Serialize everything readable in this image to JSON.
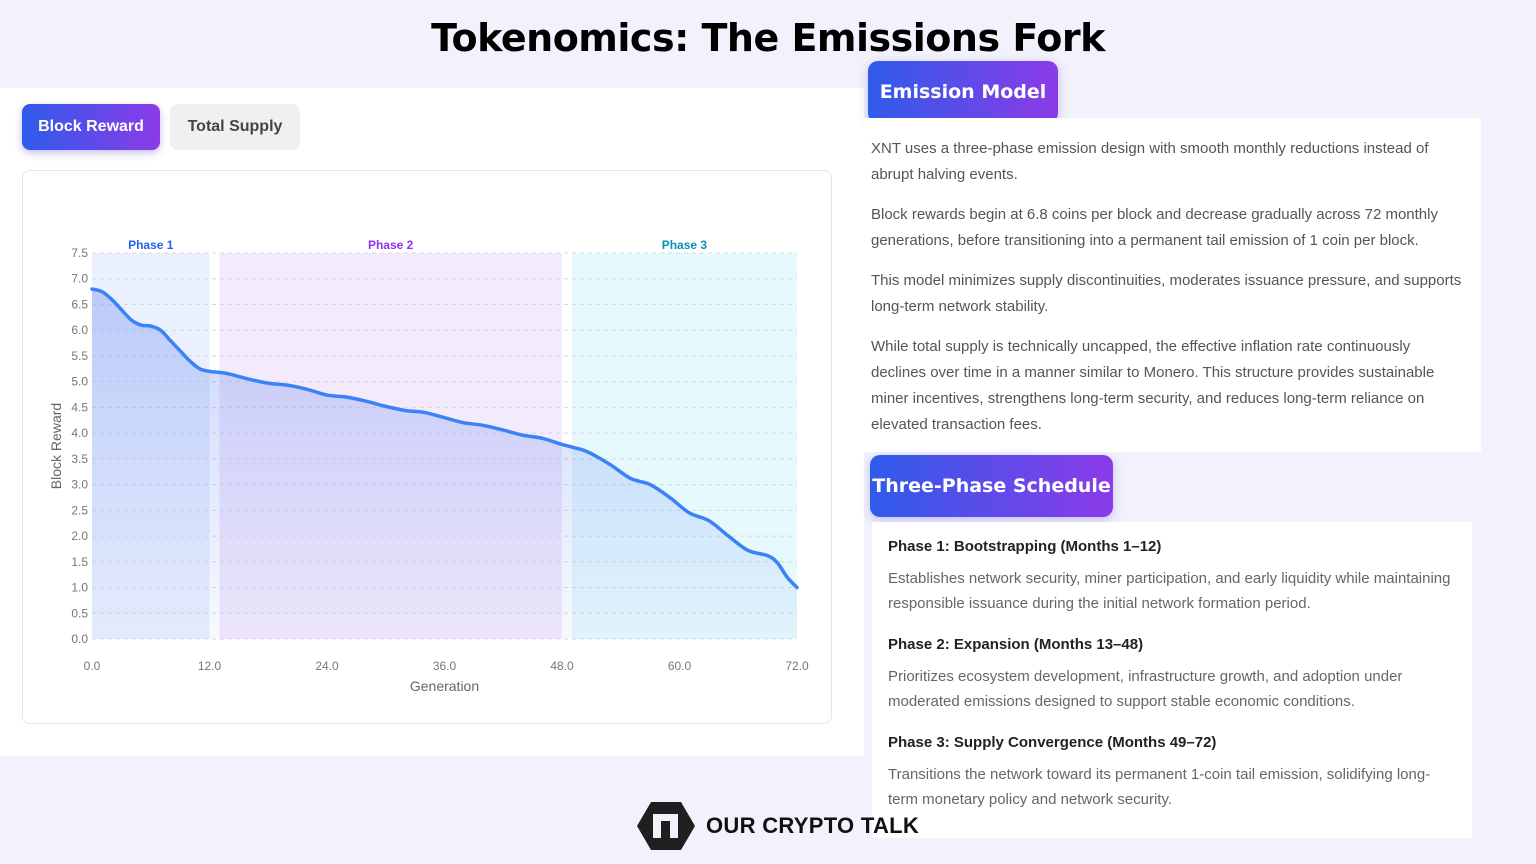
{
  "page_title": "Tokenomics: The Emissions Fork",
  "tabs": {
    "active": "Block Reward",
    "inactive": "Total Supply"
  },
  "emission_model": {
    "heading": "Emission Model",
    "paragraphs": [
      "XNT uses a three-phase emission design with smooth monthly reductions instead of abrupt halving events.",
      "Block rewards begin at 6.8 coins per block and decrease gradually across 72 monthly generations, before transitioning into a permanent tail emission of 1 coin per block.",
      "This model minimizes supply discontinuities, moderates issuance pressure, and supports long-term network stability.",
      "While total supply is technically uncapped, the effective inflation rate continuously declines over time in a manner similar to Monero. This structure provides sustainable miner incentives, strengthens long-term security, and reduces long-term reliance on elevated transaction fees."
    ]
  },
  "schedule": {
    "heading": "Three-Phase Schedule",
    "phases": [
      {
        "title": "Phase 1: Bootstrapping (Months 1–12)",
        "desc": "Establishes network security, miner participation, and early liquidity while maintaining responsible issuance during the initial network formation period."
      },
      {
        "title": "Phase 2: Expansion (Months 13–48)",
        "desc": "Prioritizes ecosystem development, infrastructure growth, and adoption under moderated emissions designed to support stable economic conditions."
      },
      {
        "title": "Phase 3: Supply Convergence (Months 49–72)",
        "desc": "Transitions the network toward its permanent 1-coin tail emission, solidifying long-term monetary policy and network security."
      }
    ]
  },
  "logo_text": "OUR CRYPTO TALK",
  "colors": {
    "accent_start": "#2f5bea",
    "accent_end": "#8b3be8",
    "line": "#3b82f6"
  },
  "chart_data": {
    "type": "area",
    "xlabel": "Generation",
    "ylabel": "Block Reward",
    "xlim": [
      0,
      72
    ],
    "ylim": [
      0,
      7.5
    ],
    "x_ticks": [
      "0.0",
      "12.0",
      "24.0",
      "36.0",
      "48.0",
      "60.0",
      "72.0"
    ],
    "y_ticks": [
      "0.0",
      "0.5",
      "1.0",
      "1.5",
      "2.0",
      "2.5",
      "3.0",
      "3.5",
      "4.0",
      "4.5",
      "5.0",
      "5.5",
      "6.0",
      "6.5",
      "7.0",
      "7.5"
    ],
    "grid": true,
    "phases": [
      {
        "label": "Phase 1",
        "start": 0,
        "end": 12,
        "color": "#2563eb",
        "fill": "#eaf0fc"
      },
      {
        "label": "Phase 2",
        "start": 13,
        "end": 48,
        "color": "#9333ea",
        "fill": "#f3eafb"
      },
      {
        "label": "Phase 3",
        "start": 49,
        "end": 72,
        "color": "#0891b2",
        "fill": "#e6f9fc"
      }
    ],
    "series": [
      {
        "values": [
          [
            0,
            6.8
          ],
          [
            1,
            6.75
          ],
          [
            2,
            6.6
          ],
          [
            3,
            6.4
          ],
          [
            4,
            6.2
          ],
          [
            5,
            6.1
          ],
          [
            6,
            6.08
          ],
          [
            7,
            6.0
          ],
          [
            8,
            5.8
          ],
          [
            9,
            5.6
          ],
          [
            10,
            5.4
          ],
          [
            11,
            5.25
          ],
          [
            12,
            5.2
          ],
          [
            13,
            5.18
          ],
          [
            14,
            5.15
          ],
          [
            16,
            5.05
          ],
          [
            18,
            4.97
          ],
          [
            20,
            4.93
          ],
          [
            22,
            4.85
          ],
          [
            24,
            4.74
          ],
          [
            26,
            4.7
          ],
          [
            28,
            4.62
          ],
          [
            30,
            4.52
          ],
          [
            32,
            4.44
          ],
          [
            34,
            4.4
          ],
          [
            36,
            4.3
          ],
          [
            38,
            4.2
          ],
          [
            40,
            4.15
          ],
          [
            42,
            4.06
          ],
          [
            44,
            3.96
          ],
          [
            46,
            3.9
          ],
          [
            48,
            3.78
          ],
          [
            50,
            3.68
          ],
          [
            51,
            3.6
          ],
          [
            53,
            3.38
          ],
          [
            55,
            3.12
          ],
          [
            57,
            3.0
          ],
          [
            59,
            2.75
          ],
          [
            61,
            2.45
          ],
          [
            63,
            2.3
          ],
          [
            65,
            2.0
          ],
          [
            67,
            1.72
          ],
          [
            69,
            1.62
          ],
          [
            70,
            1.48
          ],
          [
            71,
            1.2
          ],
          [
            72,
            1.0
          ]
        ]
      }
    ]
  }
}
